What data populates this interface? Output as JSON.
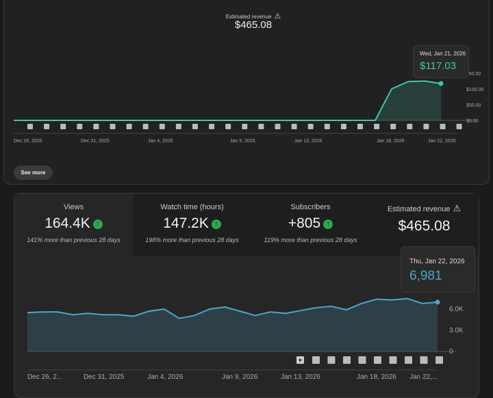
{
  "revenue_card": {
    "title": "Estimated revenue",
    "warning_icon": "warning-triangle-icon",
    "total": "$465.08",
    "see_more": "See more",
    "tooltip": {
      "date": "Wed, Jan 21, 2026",
      "value": "$117.03"
    }
  },
  "metrics": [
    {
      "label": "Views",
      "value": "164.4K",
      "trend": "up",
      "comparison": "141% more than previous 28 days"
    },
    {
      "label": "Watch time (hours)",
      "value": "147.2K",
      "trend": "up",
      "comparison": "198% more than previous 28 days"
    },
    {
      "label": "Subscribers",
      "value": "+805",
      "trend": "up",
      "comparison": "119% more than previous 28 days"
    },
    {
      "label": "Estimated revenue",
      "value": "$465.08",
      "warning": true
    }
  ],
  "views_card": {
    "tooltip": {
      "date": "Thu, Jan 22, 2026",
      "value": "6,981"
    }
  },
  "colors": {
    "revenue_line": "#3cc8b0",
    "views_line": "#4aa8cc",
    "up_badge": "#2ea84a"
  },
  "chart_data": [
    {
      "type": "area",
      "series": [
        {
          "values": [
            0,
            0,
            0,
            0,
            0,
            0,
            0,
            0,
            0,
            0,
            0,
            0,
            0,
            0,
            0,
            0,
            0,
            0,
            0,
            0,
            0,
            0,
            0,
            100.02,
            123.03,
            125.0,
            117.03
          ]
        }
      ],
      "x_ticks": [
        "Dec 26, 2025",
        "Dec 31, 2025",
        "Jan 4, 2026",
        "Jan 9, 2026",
        "Jan 13, 2026",
        "Jan 18, 2026",
        "Jan 22, 2026"
      ],
      "y_ticks": [
        "$0.00",
        "$50.00",
        "$100.00",
        "150.00"
      ],
      "ylim": [
        0,
        150
      ],
      "x_range": [
        "Dec 26, 2025",
        "Jan 22, 2026"
      ]
    },
    {
      "type": "area",
      "series": [
        {
          "values": [
            5.5,
            5.6,
            5.6,
            5.2,
            5.4,
            5.2,
            5.2,
            5.0,
            5.7,
            6.0,
            4.7,
            5.1,
            6.0,
            6.3,
            5.7,
            5.1,
            5.6,
            5.4,
            5.8,
            6.2,
            6.4,
            5.9,
            6.8,
            7.4,
            7.3,
            7.5,
            6.8,
            6.981
          ]
        }
      ],
      "y_unit": "K",
      "x_ticks": [
        "Dec 26, 2...",
        "Dec 31, 2025",
        "Jan 4, 2026",
        "Jan 9, 2026",
        "Jan 13, 2026",
        "Jan 18, 2026",
        "Jan 22,..."
      ],
      "y_ticks": [
        "0",
        "3.0K",
        "6.0K"
      ],
      "ylim": [
        0,
        9
      ],
      "x_range": [
        "Dec 26, 2025",
        "Jan 22, 2026"
      ]
    }
  ]
}
